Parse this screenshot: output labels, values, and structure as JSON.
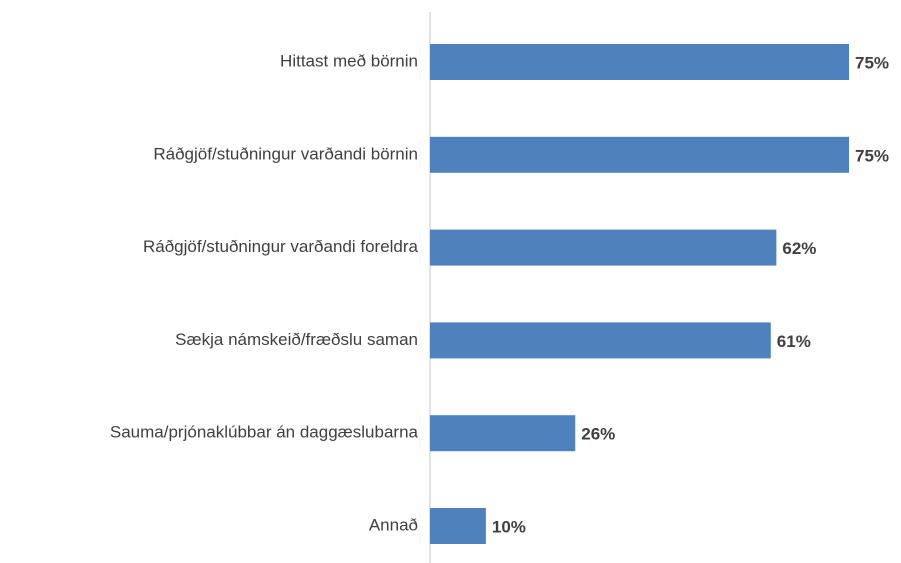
{
  "chart_data": {
    "type": "bar",
    "orientation": "horizontal",
    "categories": [
      "Hittast með börnin",
      "Ráðgjöf/stuðningur varðandi börnin",
      "Ráðgjöf/stuðningur varðandi foreldra",
      "Sækja námskeið/fræðslu saman",
      "Sauma/prjónaklúbbar án daggæslubarna",
      "Annað"
    ],
    "values": [
      75,
      75,
      62,
      61,
      26,
      10
    ],
    "value_labels": [
      "75%",
      "75%",
      "62%",
      "61%",
      "26%",
      "10%"
    ],
    "color": "#4f81bd"
  }
}
